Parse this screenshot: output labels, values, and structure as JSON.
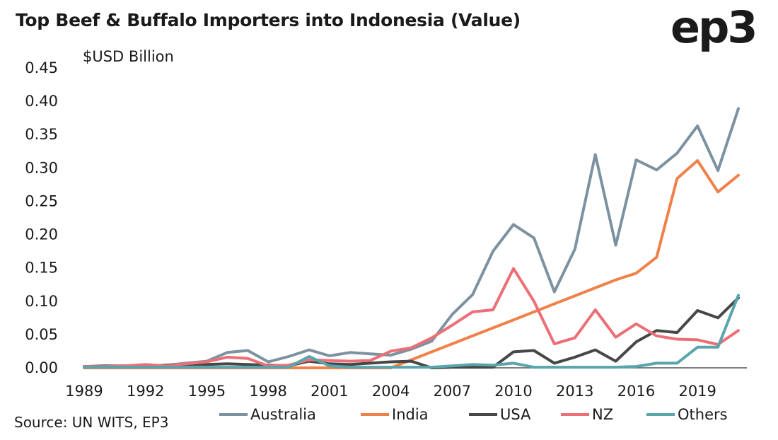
{
  "title": "Top Beef & Buffalo Importers into Indonesia (Value)",
  "logo_text": "ep3",
  "source": "Source: UN WITS, EP3",
  "chart_data": {
    "type": "line",
    "ylabel": "$USD Billion",
    "ylim": [
      0,
      0.45
    ],
    "yticks": [
      "0.00",
      "0.05",
      "0.10",
      "0.15",
      "0.20",
      "0.25",
      "0.30",
      "0.35",
      "0.40",
      "0.45"
    ],
    "xlim": [
      1989,
      2021
    ],
    "xticks": [
      "1989",
      "1992",
      "1995",
      "1998",
      "2001",
      "2004",
      "2007",
      "2010",
      "2013",
      "2016",
      "2019"
    ],
    "legend_position": "bottom",
    "grid": false,
    "x": [
      1989,
      1990,
      1991,
      1992,
      1993,
      1994,
      1995,
      1996,
      1997,
      1998,
      1999,
      2000,
      2001,
      2002,
      2003,
      2004,
      2005,
      2006,
      2007,
      2008,
      2009,
      2010,
      2011,
      2012,
      2013,
      2014,
      2015,
      2016,
      2017,
      2018,
      2019,
      2020,
      2021
    ],
    "series": [
      {
        "name": "Australia",
        "color": "#7d92a1",
        "values": [
          0.002,
          0.002,
          0.003,
          0.003,
          0.004,
          0.007,
          0.01,
          0.023,
          0.026,
          0.009,
          0.017,
          0.027,
          0.018,
          0.023,
          0.021,
          0.019,
          0.028,
          0.04,
          0.08,
          0.11,
          0.175,
          0.215,
          0.195,
          0.114,
          0.178,
          0.32,
          0.184,
          0.312,
          0.297,
          0.322,
          0.363,
          0.296,
          0.389
        ]
      },
      {
        "name": "India",
        "color": "#f0814a",
        "values": [
          0,
          0,
          0,
          0,
          0,
          0,
          0,
          0,
          0,
          0,
          0,
          0,
          0,
          0,
          0,
          0,
          0.012,
          0.024,
          0.036,
          0.048,
          0.06,
          0.072,
          0.084,
          0.096,
          0.108,
          0.12,
          0.132,
          0.142,
          0.166,
          0.284,
          0.311,
          0.264,
          0.289
        ]
      },
      {
        "name": "USA",
        "color": "#474747",
        "values": [
          0.002,
          0.003,
          0.003,
          0.003,
          0.004,
          0.005,
          0.005,
          0.006,
          0.005,
          0.004,
          0.003,
          0.01,
          0.006,
          0.005,
          0.007,
          0.009,
          0.01,
          0,
          0.001,
          0.001,
          0.001,
          0.024,
          0.026,
          0.007,
          0.016,
          0.027,
          0.01,
          0.039,
          0.056,
          0.053,
          0.086,
          0.075,
          0.105
        ]
      },
      {
        "name": "NZ",
        "color": "#ec6f77",
        "values": [
          0.002,
          0.002,
          0.003,
          0.005,
          0.003,
          0.006,
          0.009,
          0.016,
          0.014,
          0.003,
          0.004,
          0.012,
          0.011,
          0.01,
          0.011,
          0.025,
          0.03,
          0.045,
          0.064,
          0.084,
          0.087,
          0.149,
          0.1,
          0.036,
          0.045,
          0.087,
          0.046,
          0.066,
          0.048,
          0.043,
          0.042,
          0.035,
          0.056
        ]
      },
      {
        "name": "Others",
        "color": "#58a5ab",
        "values": [
          0.001,
          0.001,
          0.001,
          0.001,
          0.001,
          0.001,
          0.001,
          0.001,
          0.001,
          0.001,
          0.001,
          0.017,
          0.003,
          0.001,
          0.001,
          0.001,
          0.001,
          0.001,
          0.003,
          0.005,
          0.004,
          0.007,
          0.001,
          0.001,
          0.001,
          0.001,
          0.001,
          0.002,
          0.007,
          0.007,
          0.031,
          0.031,
          0.109
        ]
      }
    ]
  }
}
